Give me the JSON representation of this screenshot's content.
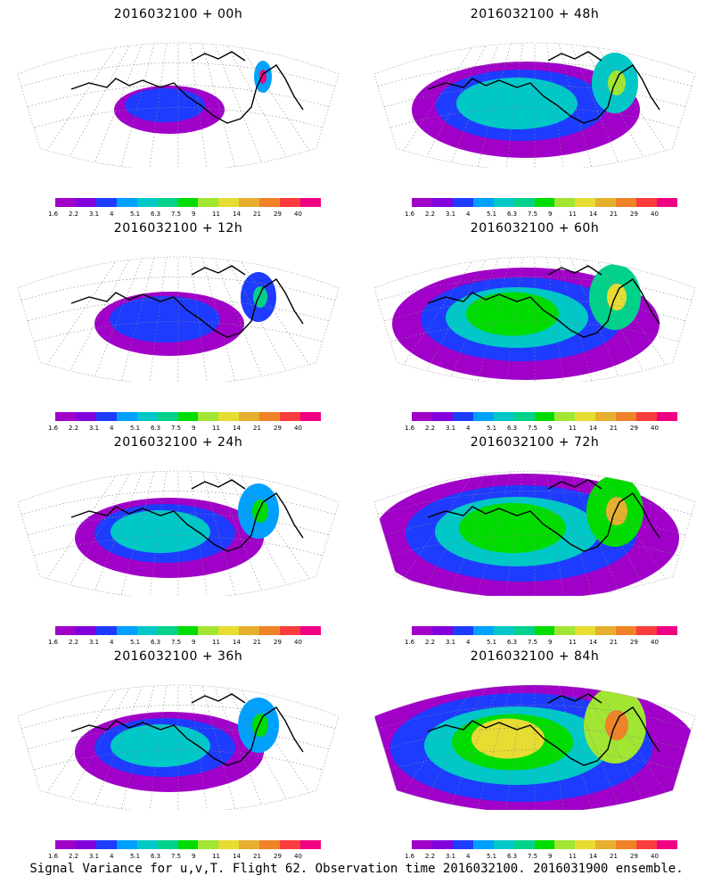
{
  "panels": [
    {
      "title": "2016032100 + 00h",
      "intensity": 1
    },
    {
      "title": "2016032100 + 48h",
      "intensity": 4
    },
    {
      "title": "2016032100 + 12h",
      "intensity": 2
    },
    {
      "title": "2016032100 + 60h",
      "intensity": 5
    },
    {
      "title": "2016032100 + 24h",
      "intensity": 3
    },
    {
      "title": "2016032100 + 72h",
      "intensity": 6
    },
    {
      "title": "2016032100 + 36h",
      "intensity": 3
    },
    {
      "title": "2016032100 + 84h",
      "intensity": 7
    }
  ],
  "colorbar": {
    "labels": [
      "1.6",
      "2.2",
      "3.1",
      "4",
      "5.1",
      "6.3",
      "7.5",
      "9",
      "11",
      "14",
      "21",
      "29",
      "40"
    ],
    "colors": [
      "#a000c8",
      "#8200dc",
      "#1e3cff",
      "#00a0ff",
      "#00c8c8",
      "#00d28c",
      "#00dc00",
      "#a0e632",
      "#e6dc32",
      "#e6af2d",
      "#f08228",
      "#fa3c3c",
      "#f00082"
    ]
  },
  "footer": "Signal Variance for u,v,T. Flight 62. Observation time 2016032100. 2016031900 ensemble."
}
